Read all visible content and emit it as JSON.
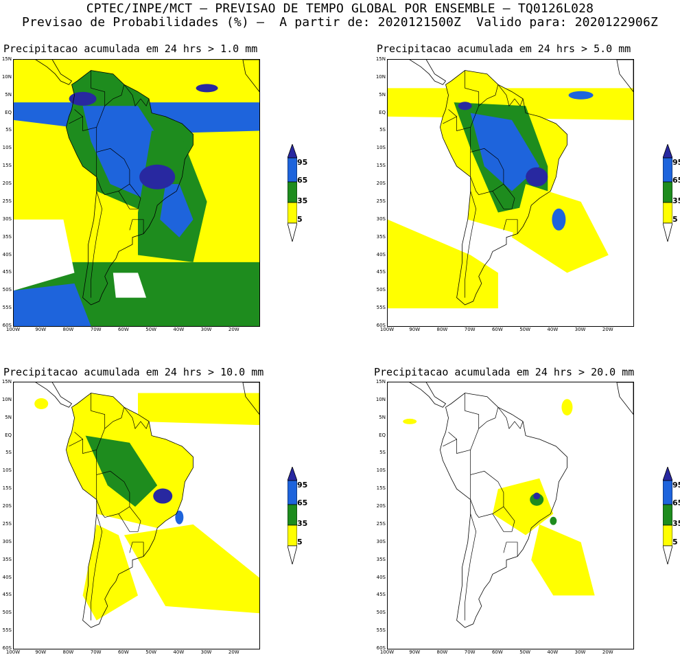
{
  "title_line1": "CPTEC/INPE/MCT — PREVISAO DE TEMPO GLOBAL POR ENSEMBLE — TQ0126L028",
  "title_line2": "Previsao de Probabilidades (%) —  A partir de: 2020121500Z  Valido para: 2020122906Z",
  "colors": {
    "c5": "#ffff00",
    "c35": "#1e8c1e",
    "c65": "#1e64dc",
    "c95": "#2828a0",
    "coast": "#000000"
  },
  "colorbar_labels": [
    "95",
    "65",
    "35",
    "5"
  ],
  "y_labels": [
    "15N",
    "10N",
    "5N",
    "EQ",
    "5S",
    "10S",
    "15S",
    "20S",
    "25S",
    "30S",
    "35S",
    "40S",
    "45S",
    "50S",
    "55S",
    "60S"
  ],
  "x_labels": [
    "100W",
    "90W",
    "80W",
    "70W",
    "60W",
    "50W",
    "40W",
    "30W",
    "20W"
  ],
  "panels": [
    {
      "id": "p1",
      "title": "Precipitacao acumulada em 24 hrs > 1.0 mm"
    },
    {
      "id": "p2",
      "title": "Precipitacao acumulada em 24 hrs > 5.0 mm"
    },
    {
      "id": "p3",
      "title": "Precipitacao acumulada em 24 hrs > 10.0 mm"
    },
    {
      "id": "p4",
      "title": "Precipitacao acumulada em 24 hrs > 20.0 mm"
    }
  ]
}
